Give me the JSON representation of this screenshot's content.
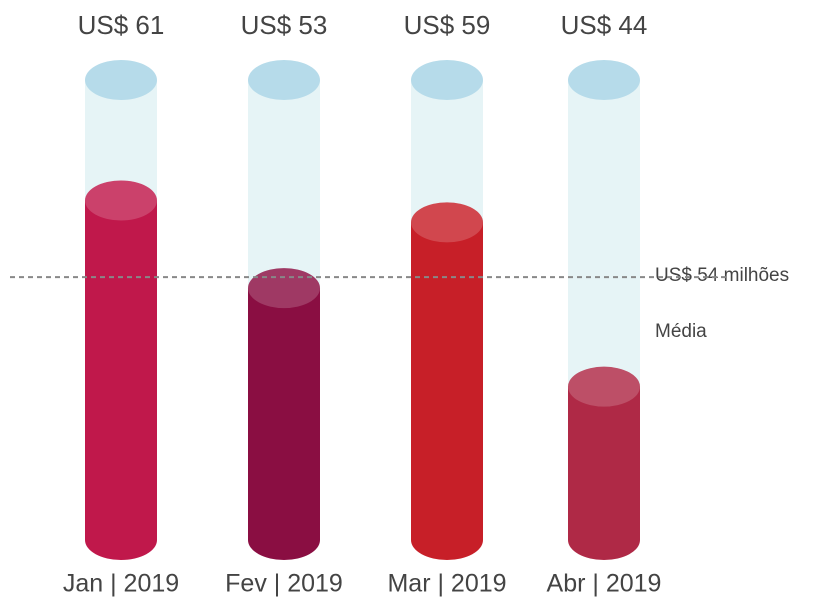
{
  "chart_data": {
    "type": "cylinder",
    "categories": [
      "Jan | 2019",
      "Fev | 2019",
      "Mar | 2019",
      "Abr | 2019"
    ],
    "values": [
      61,
      53,
      59,
      44
    ],
    "value_labels": [
      "US$ 61",
      "US$ 53",
      "US$ 59",
      "US$ 44"
    ],
    "colors": [
      "#c0184b",
      "#8a0e42",
      "#c71f28",
      "#af2946"
    ],
    "ylim": [
      30,
      72
    ],
    "average": {
      "value": 54,
      "label": "US$ 54 milhões",
      "caption": "Média"
    }
  }
}
